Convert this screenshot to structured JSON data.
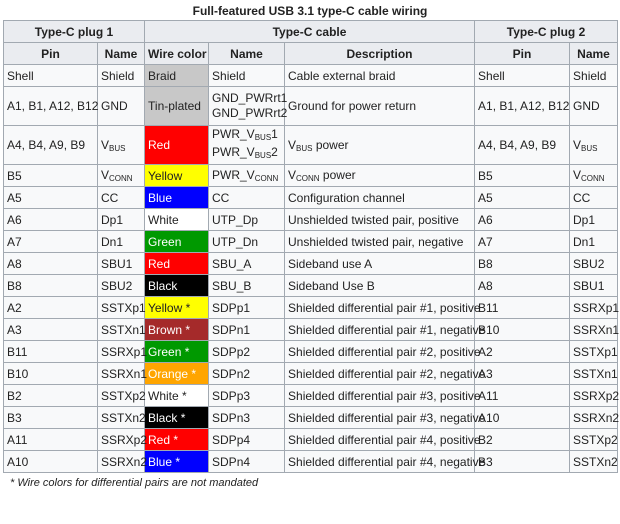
{
  "caption": "Full-featured USB 3.1 type-C cable wiring",
  "groups": {
    "plug1": "Type-C plug 1",
    "cable": "Type-C cable",
    "plug2": "Type-C plug 2"
  },
  "columns": {
    "pin": "Pin",
    "name": "Name",
    "wire_color": "Wire color",
    "cable_name": "Name",
    "description": "Description",
    "pin2": "Pin",
    "name2": "Name"
  },
  "rows": [
    {
      "pin1": "Shell",
      "name1": "Shield",
      "wire": "Braid",
      "wire_bg": "#c8c8c8",
      "wire_fg": "#222222",
      "cname": "Shield",
      "desc": "Cable external braid",
      "pin2": "Shell",
      "name2": "Shield",
      "tall": false
    },
    {
      "pin1": "A1, B1, A12, B12",
      "name1": "GND",
      "wire": "Tin-plated",
      "wire_bg": "#c8c8c8",
      "wire_fg": "#222222",
      "cname_lines": [
        "GND_PWRrt1",
        "GND_PWRrt2"
      ],
      "desc": "Ground for power return",
      "pin2": "A1, B1, A12, B12",
      "name2": "GND",
      "tall": true
    },
    {
      "pin1": "A4, B4, A9, B9",
      "name1": "V",
      "name1_sub": "BUS",
      "wire": "Red",
      "wire_bg": "#ff0000",
      "wire_fg": "#ffffff",
      "cname_lines_sub": [
        [
          "PWR_V",
          "BUS",
          "1"
        ],
        [
          "PWR_V",
          "BUS",
          "2"
        ]
      ],
      "desc": "V",
      "desc_sub": "BUS",
      "desc_after": " power",
      "pin2": "A4, B4, A9, B9",
      "name2": "V",
      "name2_sub": "BUS",
      "tall": true
    },
    {
      "pin1": "B5",
      "name1": "V",
      "name1_sub": "CONN",
      "wire": "Yellow",
      "wire_bg": "#ffff00",
      "wire_fg": "#222222",
      "cname": "PWR_V",
      "cname_sub": "CONN",
      "desc": "V",
      "desc_sub": "CONN",
      "desc_after": " power",
      "pin2": "B5",
      "name2": "V",
      "name2_sub": "CONN",
      "tall": false
    },
    {
      "pin1": "A5",
      "name1": "CC",
      "wire": "Blue",
      "wire_bg": "#0000ff",
      "wire_fg": "#ffffff",
      "cname": "CC",
      "desc": "Configuration channel",
      "pin2": "A5",
      "name2": "CC",
      "tall": false
    },
    {
      "pin1": "A6",
      "name1": "Dp1",
      "wire": "White",
      "wire_bg": "#ffffff",
      "wire_fg": "#222222",
      "cname": "UTP_Dp",
      "desc": "Unshielded twisted pair, positive",
      "pin2": "A6",
      "name2": "Dp1",
      "tall": false
    },
    {
      "pin1": "A7",
      "name1": "Dn1",
      "wire": "Green",
      "wire_bg": "#009900",
      "wire_fg": "#ffffff",
      "cname": "UTP_Dn",
      "desc": "Unshielded twisted pair, negative",
      "pin2": "A7",
      "name2": "Dn1",
      "tall": false
    },
    {
      "pin1": "A8",
      "name1": "SBU1",
      "wire": "Red",
      "wire_bg": "#ff0000",
      "wire_fg": "#ffffff",
      "cname": "SBU_A",
      "desc": "Sideband use A",
      "pin2": "B8",
      "name2": "SBU2",
      "tall": false
    },
    {
      "pin1": "B8",
      "name1": "SBU2",
      "wire": "Black",
      "wire_bg": "#000000",
      "wire_fg": "#ffffff",
      "cname": "SBU_B",
      "desc": "Sideband Use B",
      "pin2": "A8",
      "name2": "SBU1",
      "tall": false
    },
    {
      "pin1": "A2",
      "name1": "SSTXp1",
      "wire": "Yellow *",
      "wire_bg": "#ffff00",
      "wire_fg": "#222222",
      "cname": "SDPp1",
      "desc": "Shielded differential pair #1, positive",
      "pin2": "B11",
      "name2": "SSRXp1",
      "tall": false
    },
    {
      "pin1": "A3",
      "name1": "SSTXn1",
      "wire": "Brown *",
      "wire_bg": "#a52a2a",
      "wire_fg": "#ffffff",
      "cname": "SDPn1",
      "desc": "Shielded differential pair #1, negative",
      "pin2": "B10",
      "name2": "SSRXn1",
      "tall": false
    },
    {
      "pin1": "B11",
      "name1": "SSRXp1",
      "wire": "Green *",
      "wire_bg": "#009900",
      "wire_fg": "#ffffff",
      "cname": "SDPp2",
      "desc": "Shielded differential pair #2, positive",
      "pin2": "A2",
      "name2": "SSTXp1",
      "tall": false
    },
    {
      "pin1": "B10",
      "name1": "SSRXn1",
      "wire": "Orange *",
      "wire_bg": "#ffa500",
      "wire_fg": "#ffffff",
      "cname": "SDPn2",
      "desc": "Shielded differential pair #2, negative",
      "pin2": "A3",
      "name2": "SSTXn1",
      "tall": false
    },
    {
      "pin1": "B2",
      "name1": "SSTXp2",
      "wire": "White *",
      "wire_bg": "#ffffff",
      "wire_fg": "#222222",
      "cname": "SDPp3",
      "desc": "Shielded differential pair #3, positive",
      "pin2": "A11",
      "name2": "SSRXp2",
      "tall": false
    },
    {
      "pin1": "B3",
      "name1": "SSTXn2",
      "wire": "Black *",
      "wire_bg": "#000000",
      "wire_fg": "#ffffff",
      "cname": "SDPn3",
      "desc": "Shielded differential pair #3, negative",
      "pin2": "A10",
      "name2": "SSRXn2",
      "tall": false
    },
    {
      "pin1": "A11",
      "name1": "SSRXp2",
      "wire": "Red *",
      "wire_bg": "#ff0000",
      "wire_fg": "#ffffff",
      "cname": "SDPp4",
      "desc": "Shielded differential pair #4, positive",
      "pin2": "B2",
      "name2": "SSTXp2",
      "tall": false
    },
    {
      "pin1": "A10",
      "name1": "SSRXn2",
      "wire": "Blue *",
      "wire_bg": "#0000ff",
      "wire_fg": "#ffffff",
      "cname": "SDPn4",
      "desc": "Shielded differential pair #4, negative",
      "pin2": "B3",
      "name2": "SSTXn2",
      "tall": false
    }
  ],
  "footnote": "* Wire colors for differential pairs are not mandated"
}
